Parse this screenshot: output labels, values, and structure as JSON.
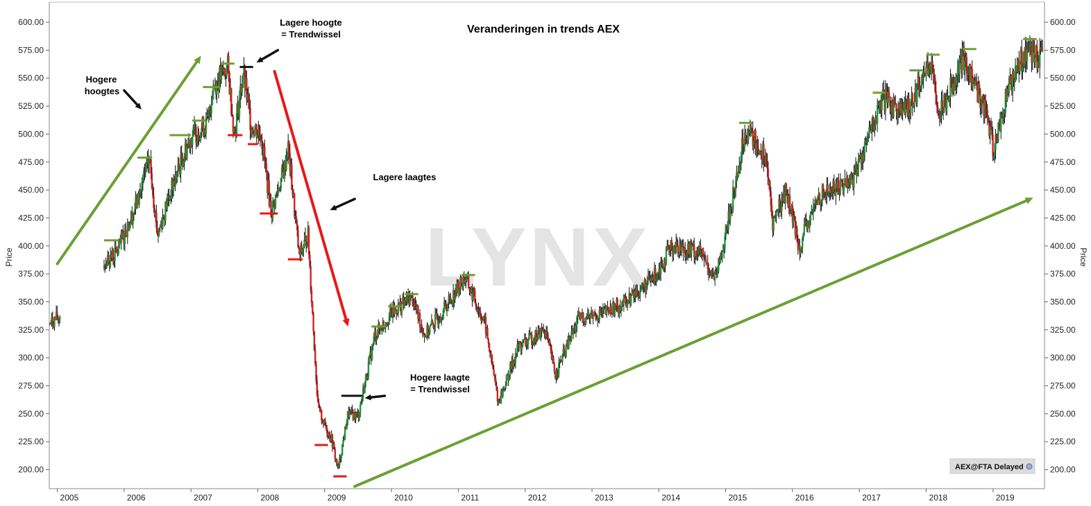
{
  "chart_data": {
    "type": "candlestick",
    "title": "Veranderingen in trends AEX",
    "ylabel_left": "Price",
    "ylabel_right": "Price",
    "xlim": [
      2004.88,
      2019.77
    ],
    "ylim": [
      183,
      618
    ],
    "y_ticks": [
      "200.00",
      "225.00",
      "250.00",
      "275.00",
      "300.00",
      "325.00",
      "350.00",
      "375.00",
      "400.00",
      "425.00",
      "450.00",
      "475.00",
      "500.00",
      "525.00",
      "550.00",
      "575.00",
      "600.00"
    ],
    "x_ticks": [
      "2005",
      "2006",
      "2007",
      "2008",
      "2009",
      "2010",
      "2011",
      "2012",
      "2013",
      "2014",
      "2015",
      "2016",
      "2017",
      "2018",
      "2019"
    ],
    "up_color": "#1a9a3a",
    "down_color": "#d42020",
    "wick_color": "#111111",
    "price_path": [
      [
        2004.88,
        330
      ],
      [
        2005.05,
        338
      ],
      [
        2005.12,
        null
      ],
      [
        2005.7,
        385
      ],
      [
        2005.9,
        395
      ],
      [
        2006.2,
        440
      ],
      [
        2006.38,
        478
      ],
      [
        2006.5,
        410
      ],
      [
        2006.65,
        440
      ],
      [
        2006.85,
        475
      ],
      [
        2007.0,
        498
      ],
      [
        2007.25,
        510
      ],
      [
        2007.33,
        542
      ],
      [
        2007.55,
        560
      ],
      [
        2007.65,
        500
      ],
      [
        2007.78,
        555
      ],
      [
        2007.9,
        508
      ],
      [
        2008.05,
        500
      ],
      [
        2008.2,
        430
      ],
      [
        2008.4,
        470
      ],
      [
        2008.45,
        490
      ],
      [
        2008.62,
        390
      ],
      [
        2008.75,
        410
      ],
      [
        2008.9,
        255
      ],
      [
        2009.0,
        240
      ],
      [
        2009.1,
        228
      ],
      [
        2009.2,
        200
      ],
      [
        2009.35,
        250
      ],
      [
        2009.5,
        248
      ],
      [
        2009.75,
        320
      ],
      [
        2010.0,
        340
      ],
      [
        2010.3,
        355
      ],
      [
        2010.5,
        320
      ],
      [
        2010.8,
        345
      ],
      [
        2011.1,
        372
      ],
      [
        2011.4,
        330
      ],
      [
        2011.6,
        260
      ],
      [
        2011.9,
        310
      ],
      [
        2012.3,
        325
      ],
      [
        2012.45,
        285
      ],
      [
        2012.8,
        335
      ],
      [
        2013.2,
        340
      ],
      [
        2013.5,
        350
      ],
      [
        2013.9,
        370
      ],
      [
        2014.2,
        400
      ],
      [
        2014.6,
        395
      ],
      [
        2014.85,
        370
      ],
      [
        2015.0,
        410
      ],
      [
        2015.3,
        505
      ],
      [
        2015.6,
        480
      ],
      [
        2015.7,
        420
      ],
      [
        2015.9,
        450
      ],
      [
        2016.1,
        400
      ],
      [
        2016.4,
        445
      ],
      [
        2016.9,
        460
      ],
      [
        2017.35,
        530
      ],
      [
        2017.7,
        520
      ],
      [
        2018.05,
        565
      ],
      [
        2018.2,
        520
      ],
      [
        2018.55,
        568
      ],
      [
        2018.9,
        520
      ],
      [
        2019.0,
        485
      ],
      [
        2019.25,
        545
      ],
      [
        2019.5,
        575
      ],
      [
        2019.75,
        565
      ]
    ],
    "annotations": [
      {
        "text": "Hogere",
        "role": "label-higher-highs-1"
      },
      {
        "text": "hoogtes",
        "role": "label-higher-highs-2"
      },
      {
        "text": "Lagere hoogte",
        "role": "label-lower-high-1"
      },
      {
        "text": "= Trendwissel",
        "role": "label-lower-high-2"
      },
      {
        "text": "Lagere laagtes",
        "role": "label-lower-lows"
      },
      {
        "text": "Hogere laagte",
        "role": "label-higher-low-1"
      },
      {
        "text": "= Trendwissel",
        "role": "label-higher-low-2"
      }
    ],
    "green_resistance_levels": [
      {
        "x0": 2005.7,
        "x1": 2005.92,
        "y": 405
      },
      {
        "x0": 2006.2,
        "x1": 2006.42,
        "y": 479
      },
      {
        "x0": 2006.68,
        "x1": 2007.0,
        "y": 499
      },
      {
        "x0": 2007.02,
        "x1": 2007.22,
        "y": 512
      },
      {
        "x0": 2007.18,
        "x1": 2007.43,
        "y": 542
      },
      {
        "x0": 2007.45,
        "x1": 2007.65,
        "y": 563
      },
      {
        "x0": 2011.05,
        "x1": 2011.25,
        "y": 374
      },
      {
        "x0": 2009.7,
        "x1": 2009.92,
        "y": 328
      },
      {
        "x0": 2009.95,
        "x1": 2010.17,
        "y": 346
      },
      {
        "x0": 2010.2,
        "x1": 2010.4,
        "y": 357
      },
      {
        "x0": 2015.2,
        "x1": 2015.4,
        "y": 510
      },
      {
        "x0": 2017.2,
        "x1": 2017.4,
        "y": 537
      },
      {
        "x0": 2017.75,
        "x1": 2017.95,
        "y": 557
      },
      {
        "x0": 2018.0,
        "x1": 2018.2,
        "y": 571
      },
      {
        "x0": 2018.55,
        "x1": 2018.75,
        "y": 576
      },
      {
        "x0": 2019.45,
        "x1": 2019.65,
        "y": 585
      }
    ],
    "red_support_levels": [
      {
        "x0": 2007.55,
        "x1": 2007.77,
        "y": 499
      },
      {
        "x0": 2007.85,
        "x1": 2008.0,
        "y": 491
      },
      {
        "x0": 2008.03,
        "x1": 2008.3,
        "y": 429
      },
      {
        "x0": 2008.45,
        "x1": 2008.67,
        "y": 388
      },
      {
        "x0": 2008.85,
        "x1": 2009.05,
        "y": 222
      },
      {
        "x0": 2009.13,
        "x1": 2009.33,
        "y": 194
      }
    ],
    "black_levels": [
      {
        "x0": 2007.73,
        "x1": 2007.93,
        "y": 560
      },
      {
        "x0": 2009.25,
        "x1": 2009.57,
        "y": 266
      }
    ],
    "trend_lines": [
      {
        "color": "#6aa033",
        "x0": 2005.0,
        "y0": 384,
        "x1": 2007.15,
        "y1": 570
      },
      {
        "color": "#e81818",
        "x0": 2008.25,
        "y0": 556,
        "x1": 2009.35,
        "y1": 328
      },
      {
        "color": "#6aa033",
        "x0": 2009.45,
        "y0": 185,
        "x1": 2019.6,
        "y1": 443
      }
    ],
    "arrows": [
      {
        "x0": 2006.0,
        "y0": 539,
        "x1": 2006.26,
        "y1": 522
      },
      {
        "x0": 2008.3,
        "y0": 575,
        "x1": 2007.98,
        "y1": 564
      },
      {
        "x0": 2009.45,
        "y0": 442,
        "x1": 2009.08,
        "y1": 432
      },
      {
        "x0": 2009.9,
        "y0": 266,
        "x1": 2009.6,
        "y1": 264
      }
    ],
    "watermark": "LYNX",
    "badge": "AEX@FTA Delayed"
  }
}
